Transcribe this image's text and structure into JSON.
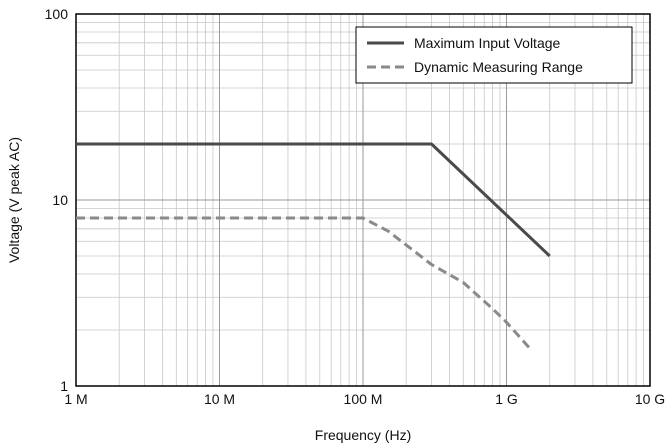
{
  "chart_data": {
    "type": "line",
    "xlabel": "Frequency (Hz)",
    "ylabel": "Voltage (V peak AC)",
    "x_scale": "log",
    "y_scale": "log",
    "xlim": [
      1000000,
      10000000000
    ],
    "ylim": [
      1,
      100
    ],
    "x_ticks": [
      {
        "value": 1000000,
        "label": "1 M"
      },
      {
        "value": 10000000,
        "label": "10 M"
      },
      {
        "value": 100000000,
        "label": "100 M"
      },
      {
        "value": 1000000000,
        "label": "1 G"
      },
      {
        "value": 10000000000,
        "label": "10 G"
      }
    ],
    "y_ticks": [
      {
        "value": 1,
        "label": "1"
      },
      {
        "value": 10,
        "label": "10"
      },
      {
        "value": 100,
        "label": "100"
      }
    ],
    "grid": true,
    "legend_position": "top-right",
    "series": [
      {
        "name": "Maximum Input Voltage",
        "color": "#4a4a4a",
        "style": "solid",
        "points": [
          [
            1000000,
            20
          ],
          [
            300000000,
            20
          ],
          [
            2000000000,
            5
          ]
        ]
      },
      {
        "name": "Dynamic Measuring Range",
        "color": "#8a8a8a",
        "style": "dashed",
        "points": [
          [
            1000000,
            8
          ],
          [
            100000000,
            8
          ],
          [
            150000000,
            6.8
          ],
          [
            300000000,
            4.5
          ],
          [
            500000000,
            3.6
          ],
          [
            800000000,
            2.6
          ],
          [
            1000000000,
            2.2
          ],
          [
            1500000000,
            1.55
          ]
        ]
      }
    ]
  }
}
